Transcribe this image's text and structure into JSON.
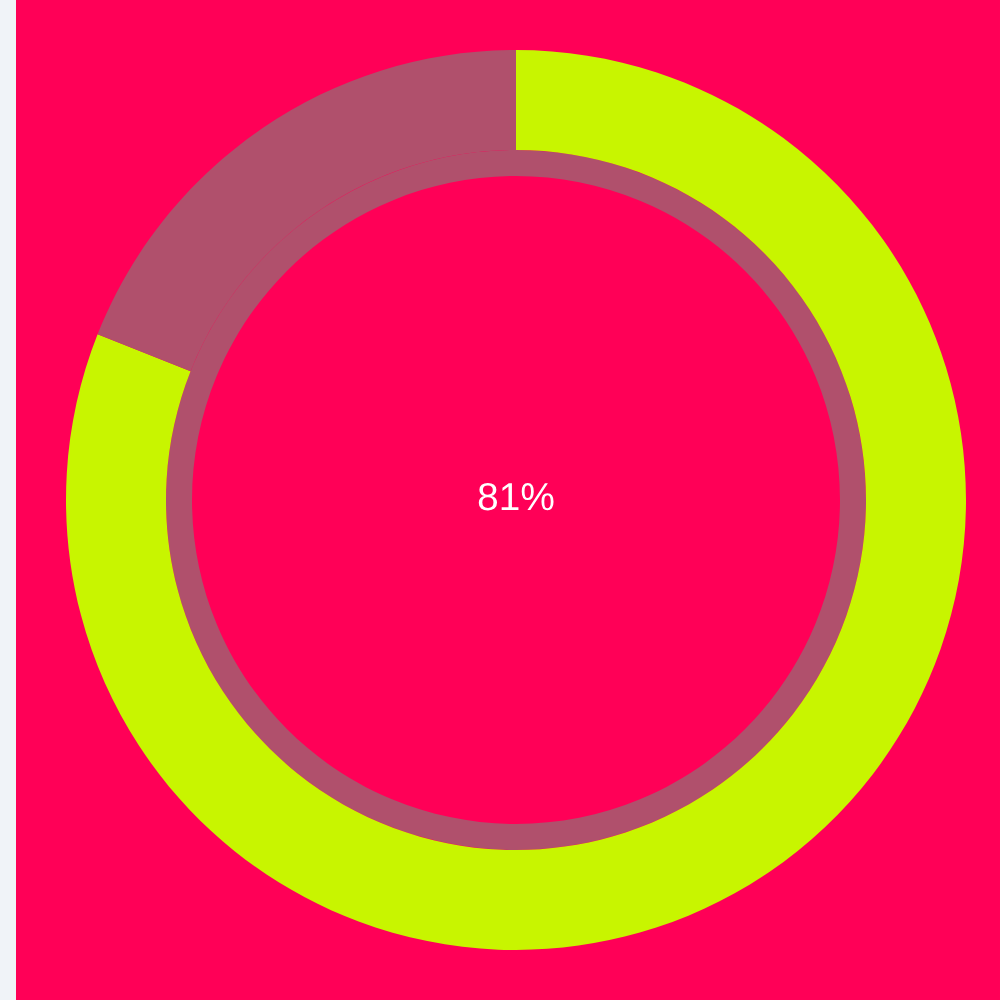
{
  "chart_data": {
    "type": "donut",
    "categories": [
      null,
      null
    ],
    "values": [
      81,
      19
    ],
    "colors": [
      "#c8f500",
      "#b0506c"
    ],
    "value_labels": [
      "81%",
      null
    ]
  }
}
